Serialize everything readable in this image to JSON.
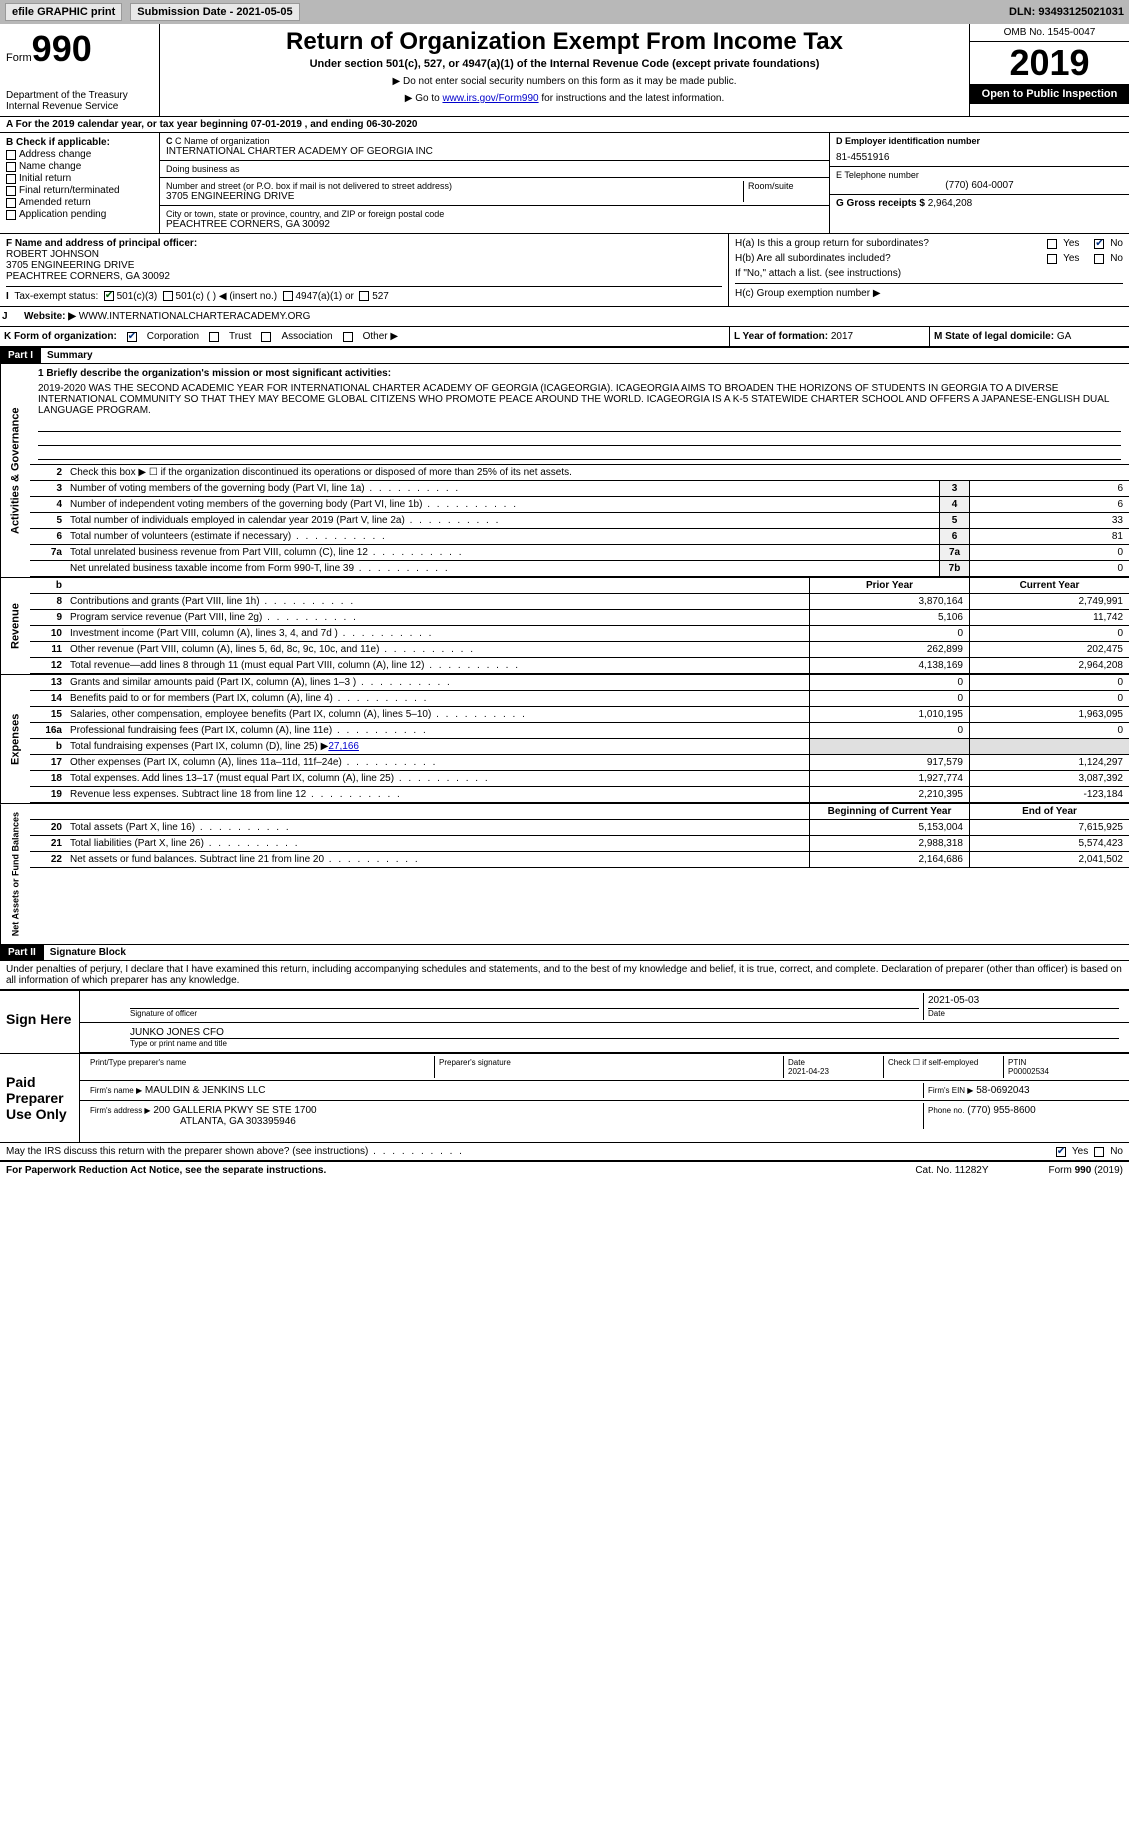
{
  "topbar": {
    "efile": "efile GRAPHIC print",
    "submission_label": "Submission Date - 2021-05-05",
    "dln": "DLN: 93493125021031"
  },
  "header": {
    "form_label": "Form",
    "form_number": "990",
    "title": "Return of Organization Exempt From Income Tax",
    "subtitle": "Under section 501(c), 527, or 4947(a)(1) of the Internal Revenue Code (except private foundations)",
    "note_ssn": "▶ Do not enter social security numbers on this form as it may be made public.",
    "note_goto_pre": "▶ Go to ",
    "note_goto_link": "www.irs.gov/Form990",
    "note_goto_post": " for instructions and the latest information.",
    "dept": "Department of the Treasury\nInternal Revenue Service",
    "omb": "OMB No. 1545-0047",
    "year": "2019",
    "open": "Open to Public Inspection"
  },
  "row_a": "A For the 2019 calendar year, or tax year beginning 07-01-2019   , and ending 06-30-2020",
  "box_b": {
    "label": "B Check if applicable:",
    "items": [
      "Address change",
      "Name change",
      "Initial return",
      "Final return/terminated",
      "Amended return",
      "Application pending"
    ]
  },
  "box_c": {
    "name_label": "C Name of organization",
    "name": "INTERNATIONAL CHARTER ACADEMY OF GEORGIA INC",
    "dba_label": "Doing business as",
    "dba": "",
    "street_label": "Number and street (or P.O. box if mail is not delivered to street address)",
    "room_label": "Room/suite",
    "street": "3705 ENGINEERING DRIVE",
    "city_label": "City or town, state or province, country, and ZIP or foreign postal code",
    "city": "PEACHTREE CORNERS, GA  30092"
  },
  "box_d": {
    "label": "D Employer identification number",
    "value": "81-4551916"
  },
  "box_e": {
    "label": "E Telephone number",
    "value": "(770) 604-0007"
  },
  "box_g": {
    "label": "G Gross receipts $",
    "value": "2,964,208"
  },
  "box_f": {
    "label": "F Name and address of principal officer:",
    "name": "ROBERT JOHNSON",
    "street": "3705 ENGINEERING DRIVE",
    "city": "PEACHTREE CORNERS, GA  30092"
  },
  "box_h": {
    "a_label": "H(a)  Is this a group return for subordinates?",
    "a_yes": "Yes",
    "a_no": "No",
    "b_label": "H(b)  Are all subordinates included?",
    "b_yes": "Yes",
    "b_no": "No",
    "b_note": "If \"No,\" attach a list. (see instructions)",
    "c_label": "H(c)  Group exemption number ▶"
  },
  "box_i": {
    "label": "Tax-exempt status:",
    "opt1": "501(c)(3)",
    "opt2": "501(c) (  ) ◀ (insert no.)",
    "opt3": "4947(a)(1) or",
    "opt4": "527"
  },
  "box_j": {
    "label": "Website: ▶",
    "value": "WWW.INTERNATIONALCHARTERACADEMY.ORG"
  },
  "box_k": {
    "label": "K Form of organization:",
    "opts": [
      "Corporation",
      "Trust",
      "Association",
      "Other ▶"
    ]
  },
  "box_l": {
    "label": "L Year of formation:",
    "value": "2017"
  },
  "box_m": {
    "label": "M State of legal domicile:",
    "value": "GA"
  },
  "part1": {
    "hdr": "Part I",
    "title": "Summary"
  },
  "mission": {
    "label": "1  Briefly describe the organization's mission or most significant activities:",
    "text": "2019-2020 WAS THE SECOND ACADEMIC YEAR FOR INTERNATIONAL CHARTER ACADEMY OF GEORGIA (ICAGEORGIA). ICAGEORGIA AIMS TO BROADEN THE HORIZONS OF STUDENTS IN GEORGIA TO A DIVERSE INTERNATIONAL COMMUNITY SO THAT THEY MAY BECOME GLOBAL CITIZENS WHO PROMOTE PEACE AROUND THE WORLD. ICAGEORGIA IS A K-5 STATEWIDE CHARTER SCHOOL AND OFFERS A JAPANESE-ENGLISH DUAL LANGUAGE PROGRAM."
  },
  "gov": {
    "line2": "Check this box ▶ ☐  if the organization discontinued its operations or disposed of more than 25% of its net assets.",
    "lines": [
      {
        "n": "3",
        "d": "Number of voting members of the governing body (Part VI, line 1a)",
        "box": "3",
        "v": "6"
      },
      {
        "n": "4",
        "d": "Number of independent voting members of the governing body (Part VI, line 1b)",
        "box": "4",
        "v": "6"
      },
      {
        "n": "5",
        "d": "Total number of individuals employed in calendar year 2019 (Part V, line 2a)",
        "box": "5",
        "v": "33"
      },
      {
        "n": "6",
        "d": "Total number of volunteers (estimate if necessary)",
        "box": "6",
        "v": "81"
      },
      {
        "n": "7a",
        "d": "Total unrelated business revenue from Part VIII, column (C), line 12",
        "box": "7a",
        "v": "0"
      },
      {
        "n": "",
        "d": "Net unrelated business taxable income from Form 990-T, line 39",
        "box": "7b",
        "v": "0"
      }
    ]
  },
  "col_hdr": {
    "b": "b",
    "prior": "Prior Year",
    "current": "Current Year"
  },
  "revenue": [
    {
      "n": "8",
      "d": "Contributions and grants (Part VIII, line 1h)",
      "p": "3,870,164",
      "c": "2,749,991"
    },
    {
      "n": "9",
      "d": "Program service revenue (Part VIII, line 2g)",
      "p": "5,106",
      "c": "11,742"
    },
    {
      "n": "10",
      "d": "Investment income (Part VIII, column (A), lines 3, 4, and 7d )",
      "p": "0",
      "c": "0"
    },
    {
      "n": "11",
      "d": "Other revenue (Part VIII, column (A), lines 5, 6d, 8c, 9c, 10c, and 11e)",
      "p": "262,899",
      "c": "202,475"
    },
    {
      "n": "12",
      "d": "Total revenue—add lines 8 through 11 (must equal Part VIII, column (A), line 12)",
      "p": "4,138,169",
      "c": "2,964,208"
    }
  ],
  "expenses": [
    {
      "n": "13",
      "d": "Grants and similar amounts paid (Part IX, column (A), lines 1–3 )",
      "p": "0",
      "c": "0"
    },
    {
      "n": "14",
      "d": "Benefits paid to or for members (Part IX, column (A), line 4)",
      "p": "0",
      "c": "0"
    },
    {
      "n": "15",
      "d": "Salaries, other compensation, employee benefits (Part IX, column (A), lines 5–10)",
      "p": "1,010,195",
      "c": "1,963,095"
    },
    {
      "n": "16a",
      "d": "Professional fundraising fees (Part IX, column (A), line 11e)",
      "p": "0",
      "c": "0"
    }
  ],
  "line16b": {
    "n": "b",
    "d": "Total fundraising expenses (Part IX, column (D), line 25) ▶",
    "v": "27,166"
  },
  "expenses2": [
    {
      "n": "17",
      "d": "Other expenses (Part IX, column (A), lines 11a–11d, 11f–24e)",
      "p": "917,579",
      "c": "1,124,297"
    },
    {
      "n": "18",
      "d": "Total expenses. Add lines 13–17 (must equal Part IX, column (A), line 25)",
      "p": "1,927,774",
      "c": "3,087,392"
    },
    {
      "n": "19",
      "d": "Revenue less expenses. Subtract line 18 from line 12",
      "p": "2,210,395",
      "c": "-123,184"
    }
  ],
  "na_hdr": {
    "begin": "Beginning of Current Year",
    "end": "End of Year"
  },
  "netassets": [
    {
      "n": "20",
      "d": "Total assets (Part X, line 16)",
      "p": "5,153,004",
      "c": "7,615,925"
    },
    {
      "n": "21",
      "d": "Total liabilities (Part X, line 26)",
      "p": "2,988,318",
      "c": "5,574,423"
    },
    {
      "n": "22",
      "d": "Net assets or fund balances. Subtract line 21 from line 20",
      "p": "2,164,686",
      "c": "2,041,502"
    }
  ],
  "part2": {
    "hdr": "Part II",
    "title": "Signature Block"
  },
  "sig_decl": "Under penalties of perjury, I declare that I have examined this return, including accompanying schedules and statements, and to the best of my knowledge and belief, it is true, correct, and complete. Declaration of preparer (other than officer) is based on all information of which preparer has any knowledge.",
  "sign_here": "Sign Here",
  "sig": {
    "sig_label": "Signature of officer",
    "date": "2021-05-03",
    "name": "JUNKO JONES  CFO",
    "name_label": "Type or print name and title"
  },
  "paid": {
    "label": "Paid Preparer Use Only",
    "pname_label": "Print/Type preparer's name",
    "psig_label": "Preparer's signature",
    "date_label": "Date",
    "date": "2021-04-23",
    "selfemp": "Check ☐ if self-employed",
    "ptin_label": "PTIN",
    "ptin": "P00002534",
    "firm_name_label": "Firm's name   ▶",
    "firm_name": "MAULDIN & JENKINS LLC",
    "firm_ein_label": "Firm's EIN ▶",
    "firm_ein": "58-0692043",
    "firm_addr_label": "Firm's address ▶",
    "firm_addr1": "200 GALLERIA PKWY SE STE 1700",
    "firm_addr2": "ATLANTA, GA  303395946",
    "phone_label": "Phone no.",
    "phone": "(770) 955-8600"
  },
  "discuss": {
    "q": "May the IRS discuss this return with the preparer shown above? (see instructions)",
    "yes": "Yes",
    "no": "No"
  },
  "footer": {
    "pra": "For Paperwork Reduction Act Notice, see the separate instructions.",
    "cat": "Cat. No. 11282Y",
    "form": "Form 990 (2019)"
  },
  "vlabels": {
    "gov": "Activities & Governance",
    "rev": "Revenue",
    "exp": "Expenses",
    "na": "Net Assets or Fund Balances"
  }
}
